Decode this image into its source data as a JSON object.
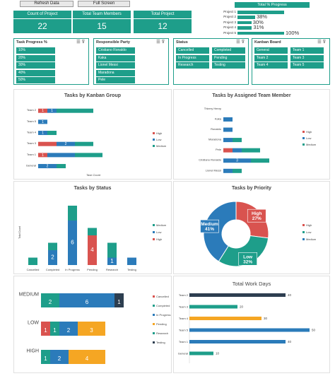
{
  "toolbar": {
    "refresh_label": "Refresh Data",
    "fullscreen_label": "Full Screen"
  },
  "kpis": [
    {
      "label": "Count of Project",
      "value": "22"
    },
    {
      "label": "Total Team Members",
      "value": "15"
    },
    {
      "label": "Total Project",
      "value": "12"
    }
  ],
  "progress": {
    "title": "Total % Progress",
    "items": [
      {
        "label": "Project 1",
        "pct": 100,
        "text": ""
      },
      {
        "label": "Project 2",
        "pct": 38,
        "text": "38%"
      },
      {
        "label": "Project 3",
        "pct": 30,
        "text": "30%"
      },
      {
        "label": "Project 4",
        "pct": 31,
        "text": "31%"
      },
      {
        "label": "Project 5",
        "pct": 100,
        "text": "100%"
      }
    ]
  },
  "slicers": {
    "progress": {
      "title": "Task Progress %",
      "items": [
        "10%",
        "20%",
        "30%",
        "40%",
        "50%",
        "60%",
        "70%"
      ]
    },
    "party": {
      "title": "Responsible Party",
      "items": [
        "Cristiano Ronaldo",
        "Kaka",
        "Lionel Messi",
        "Maradona",
        "Pele"
      ]
    },
    "status": {
      "title": "Status",
      "items": [
        "Cancelled",
        "Completed",
        "In Progress",
        "Pending",
        "Research",
        "Testing"
      ]
    },
    "kanban": {
      "title": "Kanban Board",
      "items": [
        "General",
        "Team 1",
        "Team 2",
        "Team 3",
        "Team 4",
        "Team 5"
      ]
    }
  },
  "chart_data": [
    {
      "type": "bar",
      "orientation": "horizontal",
      "stacked": true,
      "title": "Tasks by Kanban Group",
      "xlabel": "Task Count",
      "categories": [
        "Team 2",
        "Team 5",
        "Team 4",
        "Team 3",
        "Team 1",
        "General"
      ],
      "series": [
        {
          "name": "High",
          "color": "#d9534f",
          "values": [
            1,
            0,
            0,
            2,
            1,
            0
          ]
        },
        {
          "name": "Low",
          "color": "#2b7bba",
          "values": [
            1,
            1,
            1,
            2,
            3,
            2
          ]
        },
        {
          "name": "Medium",
          "color": "#1e9e8a",
          "values": [
            4,
            0,
            1,
            2,
            3,
            1
          ]
        }
      ],
      "labels": [
        [
          "1",
          "1",
          ""
        ],
        [
          "",
          "1",
          ""
        ],
        [
          "",
          "1",
          ""
        ],
        [
          "",
          "2",
          ""
        ],
        [
          "1",
          "",
          ""
        ],
        [
          "",
          "2",
          ""
        ]
      ],
      "legend": "right"
    },
    {
      "type": "bar",
      "orientation": "horizontal",
      "stacked": true,
      "title": "Tasks by Assigned Team Member",
      "categories": [
        "Thierry Henry",
        "Kaka",
        "Ronaldo",
        "Maradona",
        "Pele",
        "Cristiano Ronaldo",
        "Lionel Messi"
      ],
      "series": [
        {
          "name": "High",
          "color": "#d9534f",
          "values": [
            0,
            0,
            0,
            0,
            1,
            0,
            0
          ]
        },
        {
          "name": "Low",
          "color": "#2b7bba",
          "values": [
            0,
            1,
            1,
            1,
            1,
            3,
            1
          ]
        },
        {
          "name": "Medium",
          "color": "#1e9e8a",
          "values": [
            0,
            0,
            0,
            1,
            2,
            2,
            1
          ]
        }
      ],
      "labels": [
        [
          "",
          "",
          ""
        ],
        [
          "",
          "",
          ""
        ],
        [
          "",
          "",
          ""
        ],
        [
          "",
          "",
          ""
        ],
        [
          "",
          "",
          ""
        ],
        [
          "",
          "3",
          ""
        ],
        [
          "",
          "",
          ""
        ]
      ],
      "legend": "right"
    },
    {
      "type": "bar",
      "orientation": "vertical",
      "stacked": true,
      "title": "Tasks by Status",
      "ylabel": "Total Count",
      "categories": [
        "Cancelled",
        "Completed",
        "In Progress",
        "Pending",
        "Research",
        "Testing"
      ],
      "series": [
        {
          "name": "High",
          "color": "#d9534f",
          "values": [
            0,
            0,
            0,
            4,
            0,
            0
          ]
        },
        {
          "name": "Low",
          "color": "#2b7bba",
          "values": [
            0,
            2,
            6,
            0,
            1,
            1
          ]
        },
        {
          "name": "Medium",
          "color": "#1e9e8a",
          "values": [
            1,
            1,
            2,
            1,
            2,
            0
          ]
        }
      ],
      "labels": [
        [
          "",
          "",
          ""
        ],
        [
          "",
          "2",
          ""
        ],
        [
          "",
          "6",
          ""
        ],
        [
          "4",
          "",
          ""
        ],
        [
          "",
          "1",
          ""
        ],
        [
          "",
          "",
          ""
        ]
      ],
      "legend_order": [
        "Medium",
        "Low",
        "High"
      ],
      "legend": "right"
    },
    {
      "type": "pie",
      "donut": true,
      "title": "Tasks by Priority",
      "slices": [
        {
          "name": "High",
          "value": 27,
          "color": "#d9534f",
          "label": "High\n27%"
        },
        {
          "name": "Low",
          "value": 32,
          "color": "#1e9e8a",
          "label": "Low\n32%"
        },
        {
          "name": "Medium",
          "value": 41,
          "color": "#2b7bba",
          "label": "Medium\n41%"
        }
      ],
      "legend": "right"
    },
    {
      "type": "bar",
      "orientation": "horizontal",
      "stacked": true,
      "title": "",
      "categories": [
        "MEDIUM",
        "LOW",
        "HIGH"
      ],
      "series": [
        {
          "name": "Cancelled",
          "color": "#d9534f",
          "values": [
            0,
            1,
            0
          ]
        },
        {
          "name": "Completed",
          "color": "#1e9e8a",
          "values": [
            2,
            1,
            1
          ]
        },
        {
          "name": "In Progress",
          "color": "#2b7bba",
          "values": [
            6,
            2,
            2
          ]
        },
        {
          "name": "Pending",
          "color": "#f5a623",
          "values": [
            0,
            3,
            4
          ]
        },
        {
          "name": "Research",
          "color": "#1e9e8a",
          "values": [
            0,
            0,
            0
          ]
        },
        {
          "name": "Testing",
          "color": "#2d3e50",
          "values": [
            1,
            0,
            0
          ]
        }
      ],
      "labels": [
        [
          "",
          "2",
          "6",
          "",
          "",
          "1"
        ],
        [
          "1",
          "1",
          "2",
          "3",
          "",
          ""
        ],
        [
          "",
          "1",
          "2",
          "4",
          "",
          ""
        ]
      ],
      "legend": "right"
    },
    {
      "type": "bar",
      "orientation": "horizontal",
      "title": "Total Work Days",
      "categories": [
        "Team 2",
        "Team 3",
        "Team 4",
        "Team 5",
        "Team 1",
        "General"
      ],
      "values": [
        40,
        20,
        30,
        50,
        40,
        10
      ],
      "colors": [
        "#2d3e50",
        "#1e9e8a",
        "#f5a623",
        "#2b7bba",
        "#2b7bba",
        "#1e9e8a"
      ]
    }
  ]
}
